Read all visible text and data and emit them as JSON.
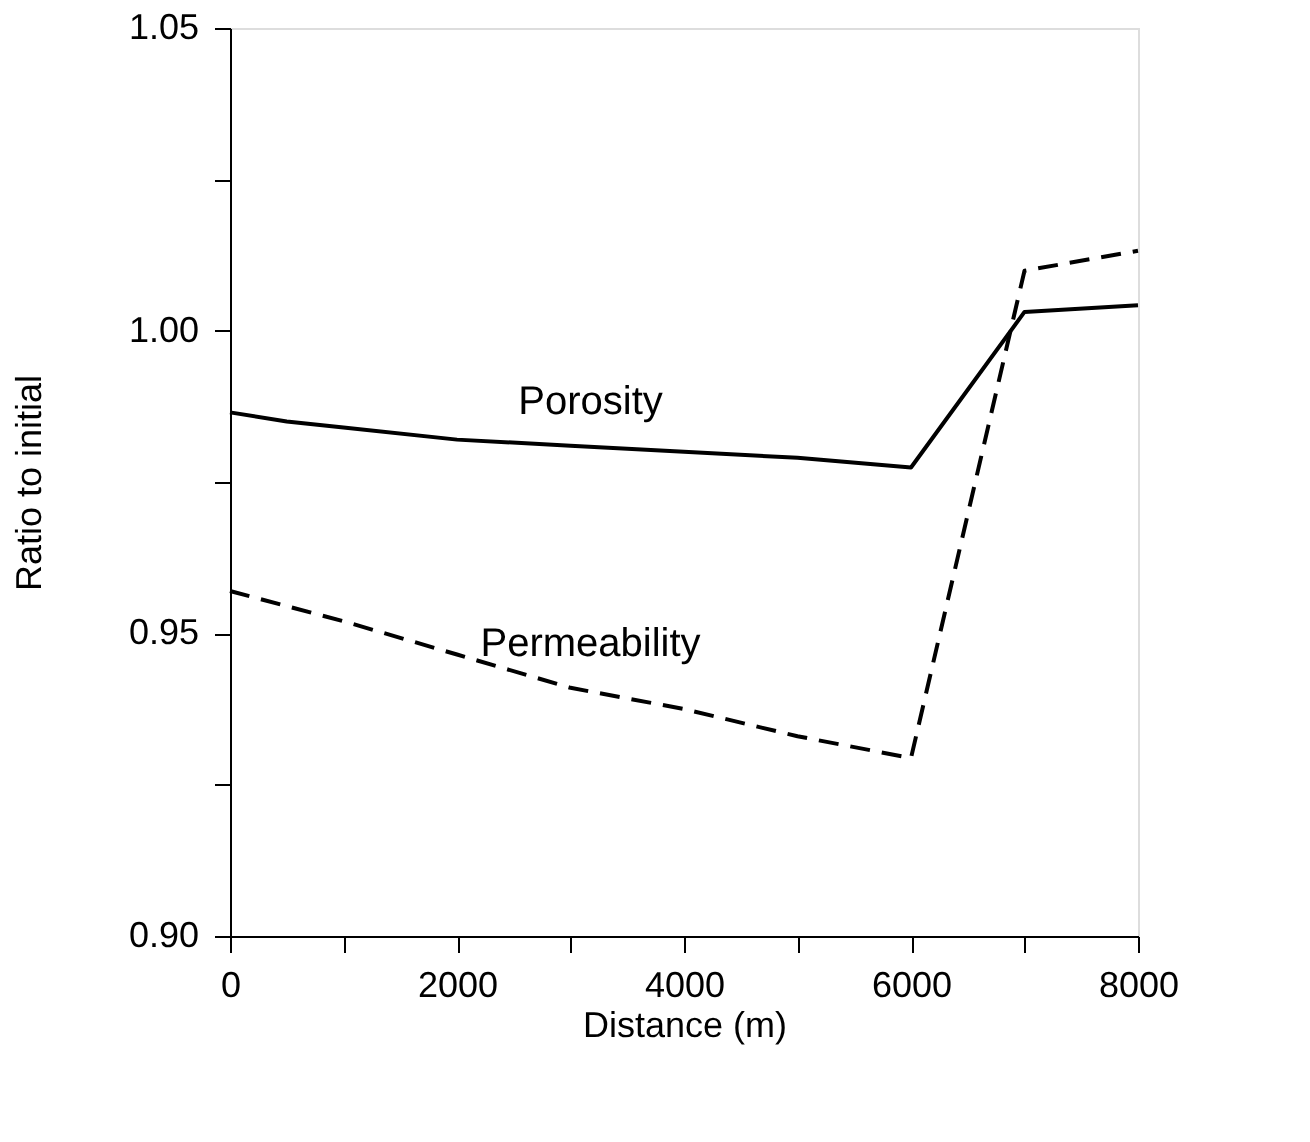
{
  "chart_data": {
    "type": "line",
    "xlabel": "Distance (m)",
    "ylabel": "Ratio to initial",
    "xlim": [
      0,
      8000
    ],
    "ylim": [
      0.9,
      1.05
    ],
    "xticks": [
      0,
      {
        "value": 1000,
        "label": null
      },
      2000,
      {
        "value": 3000,
        "label": null
      },
      4000,
      {
        "value": 5000,
        "label": null
      },
      6000,
      {
        "value": 7000,
        "label": null
      },
      8000
    ],
    "yticks": [
      {
        "value": 0.9,
        "label": "0.90"
      },
      {
        "value": 0.925,
        "label": null
      },
      0.95,
      {
        "value": 0.975,
        "label": null
      },
      {
        "value": 1.0,
        "label": "1.00"
      },
      {
        "value": 1.025,
        "label": null
      },
      1.05
    ],
    "grid": false,
    "legend": false,
    "marker": "none",
    "series": [
      {
        "name": "Porosity",
        "color": "#000000",
        "line_style": "solid",
        "x": [
          0,
          500,
          1000,
          2000,
          3000,
          4000,
          5000,
          6000,
          7000,
          8000
        ],
        "values": [
          0.9865,
          0.985,
          0.984,
          0.982,
          0.981,
          0.98,
          0.979,
          0.9774,
          1.0031,
          1.0042
        ]
      },
      {
        "name": "Permeability",
        "color": "#000000",
        "line_style": "dashed",
        "x": [
          0,
          500,
          1000,
          2000,
          3000,
          4000,
          5000,
          6000,
          7000,
          8000
        ],
        "values": [
          0.957,
          0.9545,
          0.952,
          0.9465,
          0.941,
          0.9375,
          0.933,
          0.9294,
          1.0099,
          1.0132
        ]
      }
    ]
  }
}
